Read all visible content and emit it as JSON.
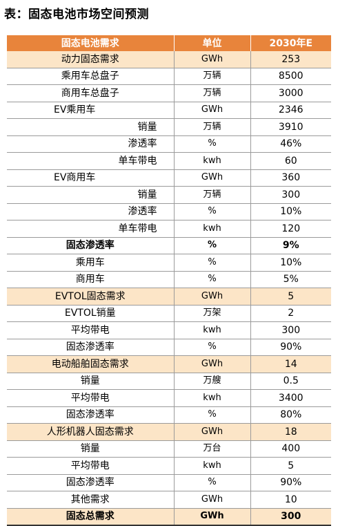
{
  "title": "表：固态电池市场空间预测",
  "table": {
    "headers": [
      "固态电池需求",
      "单位",
      "2030年E"
    ],
    "rows": [
      {
        "name": "动力固态需求",
        "unit": "GWh",
        "value": "253",
        "style": "hl",
        "align": "center"
      },
      {
        "name": "乘用车总盘子",
        "unit": "万辆",
        "value": "8500",
        "style": "",
        "align": "center"
      },
      {
        "name": "商用车总盘子",
        "unit": "万辆",
        "value": "3000",
        "style": "",
        "align": "center"
      },
      {
        "name": "EV乘用车",
        "unit": "GWh",
        "value": "2346",
        "style": "",
        "align": "left"
      },
      {
        "name": "销量",
        "unit": "万辆",
        "value": "3910",
        "style": "",
        "align": "right"
      },
      {
        "name": "渗透率",
        "unit": "%",
        "value": "46%",
        "style": "",
        "align": "right"
      },
      {
        "name": "单车带电",
        "unit": "kwh",
        "value": "60",
        "style": "",
        "align": "right"
      },
      {
        "name": "EV商用车",
        "unit": "GWh",
        "value": "360",
        "style": "",
        "align": "left"
      },
      {
        "name": "销量",
        "unit": "万辆",
        "value": "300",
        "style": "",
        "align": "right"
      },
      {
        "name": "渗透率",
        "unit": "%",
        "value": "10%",
        "style": "",
        "align": "right"
      },
      {
        "name": "单车带电",
        "unit": "kwh",
        "value": "120",
        "style": "",
        "align": "right"
      },
      {
        "name": "固态渗透率",
        "unit": "%",
        "value": "9%",
        "style": "bold",
        "align": "center"
      },
      {
        "name": "乘用车",
        "unit": "%",
        "value": "10%",
        "style": "",
        "align": "center"
      },
      {
        "name": "商用车",
        "unit": "%",
        "value": "5%",
        "style": "",
        "align": "center"
      },
      {
        "name": "EVTOL固态需求",
        "unit": "GWh",
        "value": "5",
        "style": "hl",
        "align": "center"
      },
      {
        "name": "EVTOL销量",
        "unit": "万架",
        "value": "2",
        "style": "",
        "align": "center"
      },
      {
        "name": "平均带电",
        "unit": "kwh",
        "value": "300",
        "style": "",
        "align": "center"
      },
      {
        "name": "固态渗透率",
        "unit": "%",
        "value": "90%",
        "style": "",
        "align": "center"
      },
      {
        "name": "电动船舶固态需求",
        "unit": "GWh",
        "value": "14",
        "style": "hl",
        "align": "center"
      },
      {
        "name": "销量",
        "unit": "万艘",
        "value": "0.5",
        "style": "",
        "align": "center"
      },
      {
        "name": "平均带电",
        "unit": "kwh",
        "value": "3400",
        "style": "",
        "align": "center"
      },
      {
        "name": "固态渗透率",
        "unit": "%",
        "value": "80%",
        "style": "",
        "align": "center"
      },
      {
        "name": "人形机器人固态需求",
        "unit": "GWh",
        "value": "18",
        "style": "hl",
        "align": "center"
      },
      {
        "name": "销量",
        "unit": "万台",
        "value": "400",
        "style": "",
        "align": "center"
      },
      {
        "name": "平均带电",
        "unit": "kwh",
        "value": "5",
        "style": "",
        "align": "center"
      },
      {
        "name": "固态渗透率",
        "unit": "%",
        "value": "90%",
        "style": "",
        "align": "center"
      },
      {
        "name": "其他需求",
        "unit": "GWh",
        "value": "10",
        "style": "",
        "align": "center"
      },
      {
        "name": "固态总需求",
        "unit": "GWh",
        "value": "300",
        "style": "hl bold total",
        "align": "center"
      }
    ]
  }
}
